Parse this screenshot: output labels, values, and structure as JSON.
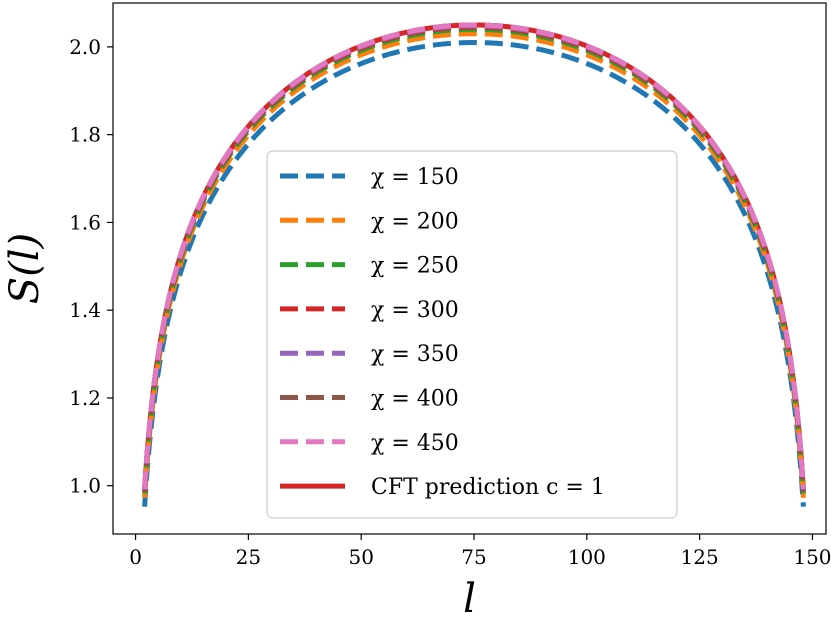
{
  "chart_data": {
    "type": "line",
    "title": "",
    "xlabel": "l",
    "ylabel": "S(l)",
    "xlim": [
      -5,
      153
    ],
    "ylim": [
      0.89,
      2.1
    ],
    "x_ticks": [
      0,
      25,
      50,
      75,
      100,
      125,
      150
    ],
    "x_tick_labels": [
      "0",
      "25",
      "50",
      "75",
      "100",
      "125",
      "150"
    ],
    "y_ticks": [
      1.0,
      1.2,
      1.4,
      1.6,
      1.8,
      2.0
    ],
    "y_tick_labels": [
      "1.0",
      "1.2",
      "1.4",
      "1.6",
      "1.8",
      "2.0"
    ],
    "grid": false,
    "legend_position": "lower center",
    "system_length": 150,
    "series": [
      {
        "name": "χ = 150",
        "style": "dashed",
        "color": "#1f77b4",
        "peak": 2.01
      },
      {
        "name": "χ = 200",
        "style": "dashed",
        "color": "#ff7f0e",
        "peak": 2.03
      },
      {
        "name": "χ = 250",
        "style": "dashed",
        "color": "#2ca02c",
        "peak": 2.04
      },
      {
        "name": "χ = 300",
        "style": "dashed",
        "color": "#d62728",
        "peak": 2.045
      },
      {
        "name": "χ = 350",
        "style": "dashed",
        "color": "#9467bd",
        "peak": 2.048
      },
      {
        "name": "χ = 400",
        "style": "dashed",
        "color": "#8c564b",
        "peak": 2.05
      },
      {
        "name": "χ = 450",
        "style": "dashed",
        "color": "#e377c2",
        "peak": 2.05
      },
      {
        "name": "CFT prediction c = 1",
        "style": "solid",
        "color": "#d62728",
        "peak": 2.05
      }
    ]
  }
}
